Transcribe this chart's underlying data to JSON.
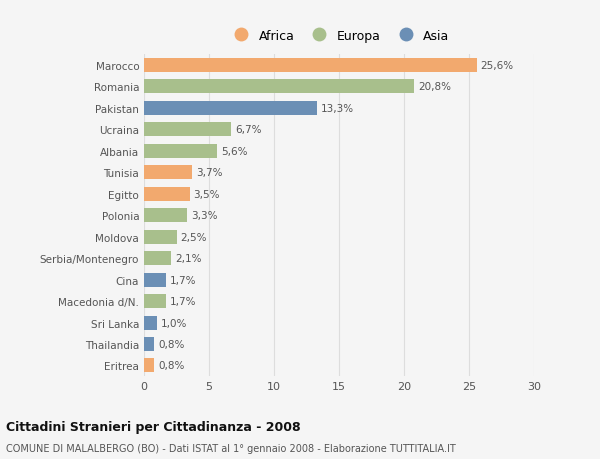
{
  "categories": [
    "Marocco",
    "Romania",
    "Pakistan",
    "Ucraina",
    "Albania",
    "Tunisia",
    "Egitto",
    "Polonia",
    "Moldova",
    "Serbia/Montenegro",
    "Cina",
    "Macedonia d/N.",
    "Sri Lanka",
    "Thailandia",
    "Eritrea"
  ],
  "values": [
    25.6,
    20.8,
    13.3,
    6.7,
    5.6,
    3.7,
    3.5,
    3.3,
    2.5,
    2.1,
    1.7,
    1.7,
    1.0,
    0.8,
    0.8
  ],
  "labels": [
    "25,6%",
    "20,8%",
    "13,3%",
    "6,7%",
    "5,6%",
    "3,7%",
    "3,5%",
    "3,3%",
    "2,5%",
    "2,1%",
    "1,7%",
    "1,7%",
    "1,0%",
    "0,8%",
    "0,8%"
  ],
  "continents": [
    "Africa",
    "Europa",
    "Asia",
    "Europa",
    "Europa",
    "Africa",
    "Africa",
    "Europa",
    "Europa",
    "Europa",
    "Asia",
    "Europa",
    "Asia",
    "Asia",
    "Africa"
  ],
  "colors": {
    "Africa": "#F2A96E",
    "Europa": "#A8BF8C",
    "Asia": "#6B8FB5"
  },
  "legend_order": [
    "Africa",
    "Europa",
    "Asia"
  ],
  "title": "Cittadini Stranieri per Cittadinanza - 2008",
  "subtitle": "COMUNE DI MALALBERGO (BO) - Dati ISTAT al 1° gennaio 2008 - Elaborazione TUTTITALIA.IT",
  "xlim": [
    0,
    30
  ],
  "xticks": [
    0,
    5,
    10,
    15,
    20,
    25,
    30
  ],
  "background_color": "#f5f5f5",
  "bar_height": 0.65,
  "grid_color": "#dddddd",
  "label_color": "#555555",
  "title_color": "#111111",
  "subtitle_color": "#555555"
}
